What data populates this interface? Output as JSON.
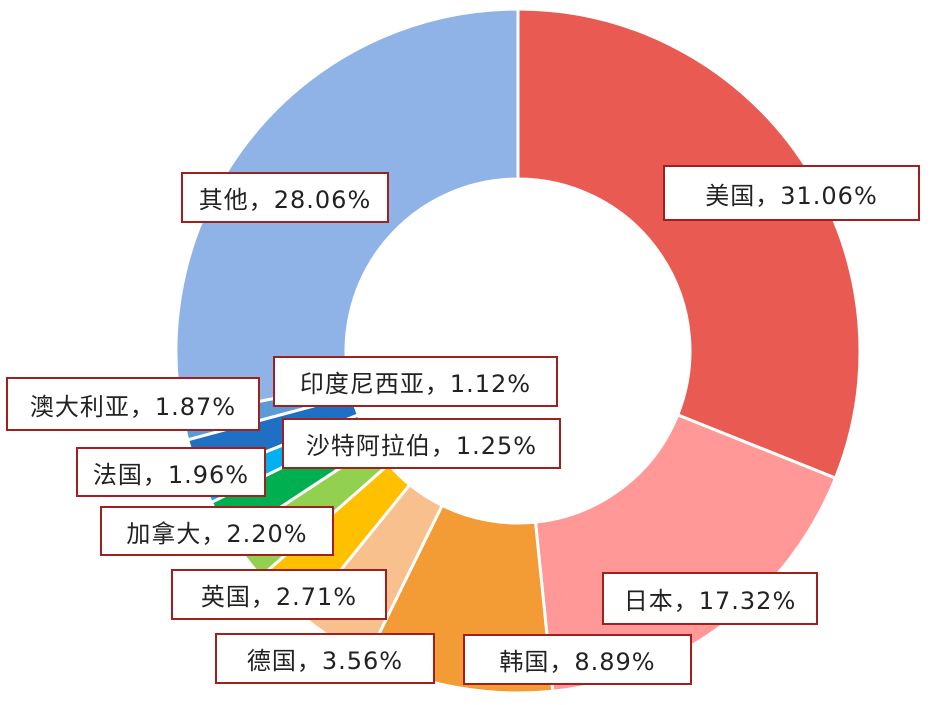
{
  "chart_data": {
    "type": "pie",
    "variant": "donut",
    "title": "",
    "slices": [
      {
        "name": "美国",
        "value": 31.06,
        "label": "美国，31.06%",
        "color": "#E85A52"
      },
      {
        "name": "日本",
        "value": 17.32,
        "label": "日本，17.32%",
        "color": "#FF9896"
      },
      {
        "name": "韩国",
        "value": 8.89,
        "label": "韩国，8.89%",
        "color": "#F39B35"
      },
      {
        "name": "德国",
        "value": 3.56,
        "label": "德国，3.56%",
        "color": "#F8C08C"
      },
      {
        "name": "英国",
        "value": 2.71,
        "label": "英国，2.71%",
        "color": "#FFC000"
      },
      {
        "name": "加拿大",
        "value": 2.2,
        "label": "加拿大，2.20%",
        "color": "#92D050"
      },
      {
        "name": "法国",
        "value": 1.96,
        "label": "法国，1.96%",
        "color": "#00B050"
      },
      {
        "name": "沙特阿拉伯",
        "value": 1.25,
        "label": "沙特阿拉伯，1.25%",
        "color": "#00B0F0"
      },
      {
        "name": "澳大利亚",
        "value": 1.87,
        "label": "澳大利亚，1.87%",
        "color": "#1F6FC5"
      },
      {
        "name": "印度尼西亚",
        "value": 1.12,
        "label": "印度尼西亚，1.12%",
        "color": "#5B9BD5"
      },
      {
        "name": "其他",
        "value": 28.06,
        "label": "其他，28.06%",
        "color": "#8FB3E6"
      }
    ],
    "legend": "none"
  }
}
